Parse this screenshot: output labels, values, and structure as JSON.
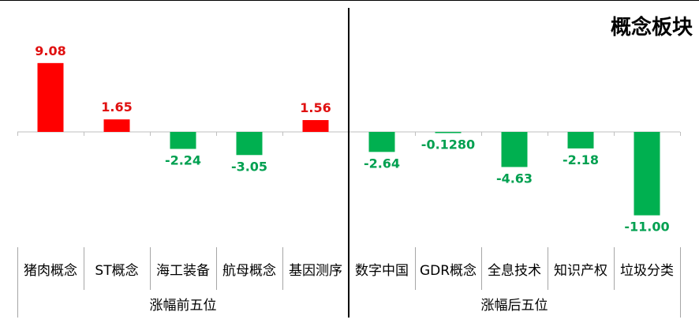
{
  "chart_data": {
    "type": "bar",
    "title": "概念板块",
    "groups": [
      {
        "label": "涨幅前五位",
        "categories": [
          "猪肉概念",
          "ST概念",
          "海工装备",
          "航母概念",
          "基因测序"
        ]
      },
      {
        "label": "涨幅后五位",
        "categories": [
          "数字中国",
          "GDR概念",
          "全息技术",
          "知识产权",
          "垃圾分类"
        ]
      }
    ],
    "categories": [
      "猪肉概念",
      "ST概念",
      "海工装备",
      "航母概念",
      "基因测序",
      "数字中国",
      "GDR概念",
      "全息技术",
      "知识产权",
      "垃圾分类"
    ],
    "values": [
      9.08,
      1.65,
      -2.24,
      -3.05,
      1.56,
      -2.64,
      -0.128,
      -4.63,
      -2.18,
      -11.0
    ],
    "value_labels": [
      "9.08",
      "1.65",
      "-2.24",
      "-3.05",
      "1.56",
      "-2.64",
      "-0.1280",
      "-4.63",
      "-2.18",
      "-11.00"
    ],
    "positive_color": "#ff0000",
    "negative_color": "#00b050",
    "positive_label_color": "#e01010",
    "negative_label_color": "#00a050",
    "legend": "none",
    "grid": false
  }
}
